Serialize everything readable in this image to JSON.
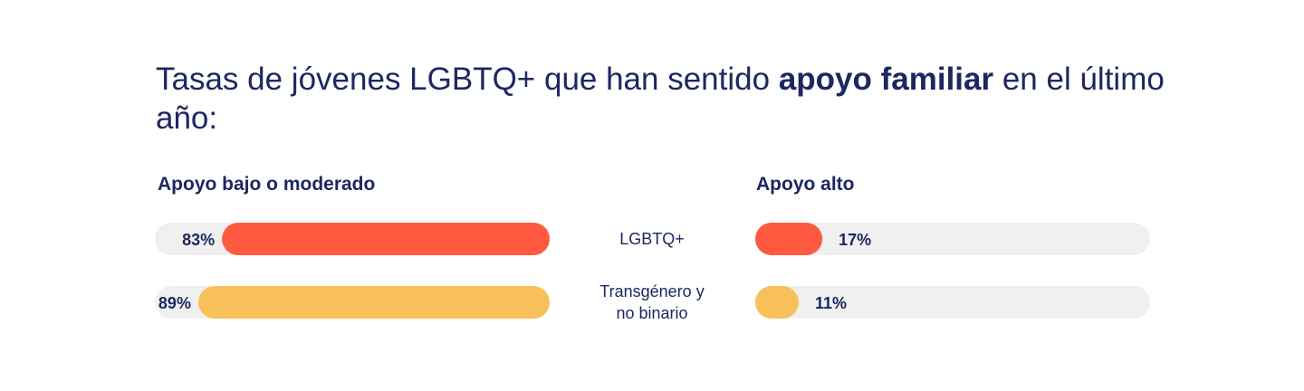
{
  "title": {
    "part1": "Tasas de jóvenes LGBTQ+ que han sentido ",
    "bold": "apoyo familiar",
    "part2": " en el último año:"
  },
  "chart_data": {
    "type": "bar",
    "title": "Tasas de jóvenes LGBTQ+ que han sentido apoyo familiar en el último año:",
    "categories": [
      {
        "lines": [
          "LGBTQ+"
        ]
      },
      {
        "lines": [
          "Transgénero y",
          "no binario"
        ]
      }
    ],
    "series": [
      {
        "name": "Apoyo bajo o moderado",
        "values": [
          83,
          89
        ],
        "labels": [
          "83%",
          "89%"
        ]
      },
      {
        "name": "Apoyo alto",
        "values": [
          17,
          11
        ],
        "labels": [
          "17%",
          "11%"
        ]
      }
    ],
    "ylim": [
      0,
      100
    ],
    "bar_colors": [
      "#ff5a3f",
      "#f8c05a"
    ],
    "track_color": "#f0f0f0",
    "text_color": "#1d2761"
  }
}
